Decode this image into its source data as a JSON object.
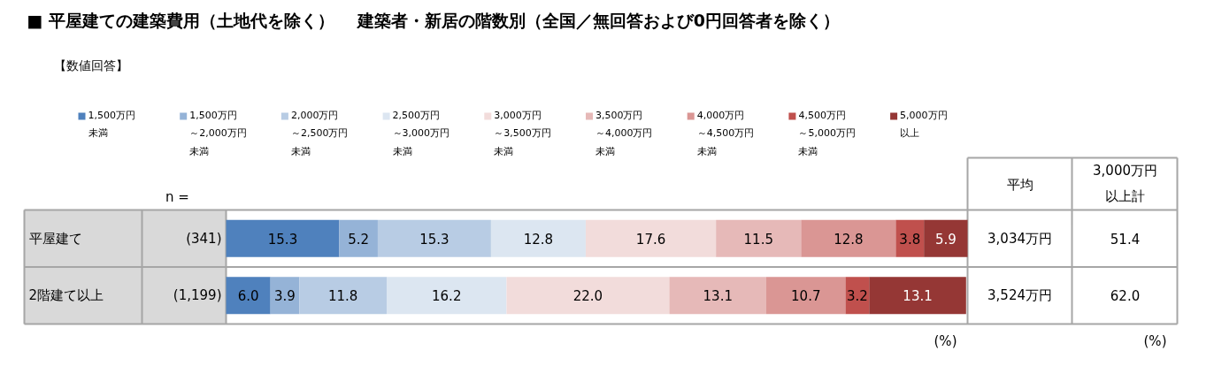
{
  "chart_data": {
    "type": "bar",
    "orientation": "horizontal",
    "stacked": true,
    "data_labels": true,
    "grid": false,
    "legend": "top",
    "title": "■ 平屋建ての建築費用（土地代を除く）　 建築者・新居の階数別（全国／無回答および0円回答者を除く）",
    "subtitle": "【数値回答】",
    "categories": [
      "平屋建て",
      "2階建て以上"
    ],
    "series": [
      {
        "name": "1,500万円未満",
        "color": "#4f81bd",
        "values": [
          15.3,
          6.0
        ],
        "value_labels": [
          "15.3",
          "6.0"
        ]
      },
      {
        "name": "1,500万円～2,000万円未満",
        "color": "#95b3d7",
        "values": [
          5.2,
          3.9
        ],
        "value_labels": [
          "5.2",
          "3.9"
        ]
      },
      {
        "name": "2,000万円～2,500万円未満",
        "color": "#b8cce4",
        "values": [
          15.3,
          11.8
        ],
        "value_labels": [
          "15.3",
          "11.8"
        ]
      },
      {
        "name": "2,500万円～3,000万円未満",
        "color": "#dce6f1",
        "values": [
          12.8,
          16.2
        ],
        "value_labels": [
          "12.8",
          "16.2"
        ]
      },
      {
        "name": "3,000万円～3,500万円未満",
        "color": "#f2dcdb",
        "values": [
          17.6,
          22.0
        ],
        "value_labels": [
          "17.6",
          "22.0"
        ]
      },
      {
        "name": "3,500万円～4,000万円未満",
        "color": "#e6b9b8",
        "values": [
          11.5,
          13.1
        ],
        "value_labels": [
          "11.5",
          "13.1"
        ]
      },
      {
        "name": "4,000万円～4,500万円未満",
        "color": "#da9694",
        "values": [
          12.8,
          10.7
        ],
        "value_labels": [
          "12.8",
          "10.7"
        ]
      },
      {
        "name": "4,500万円～5,000万円未満",
        "color": "#c0504d",
        "values": [
          3.8,
          3.2
        ],
        "value_labels": [
          "3.8",
          "3.2"
        ]
      },
      {
        "name": "5,000万円以上",
        "color": "#953735",
        "values": [
          5.9,
          13.1
        ],
        "value_labels": [
          "5.9",
          "13.1"
        ]
      }
    ],
    "annotations": [
      "n =",
      "(341)",
      "(1,199)",
      "平均",
      "3,000万円以上計",
      "3,034万円",
      "3,524万円",
      "51.4",
      "62.0",
      "(%)",
      "(%)"
    ]
  }
}
